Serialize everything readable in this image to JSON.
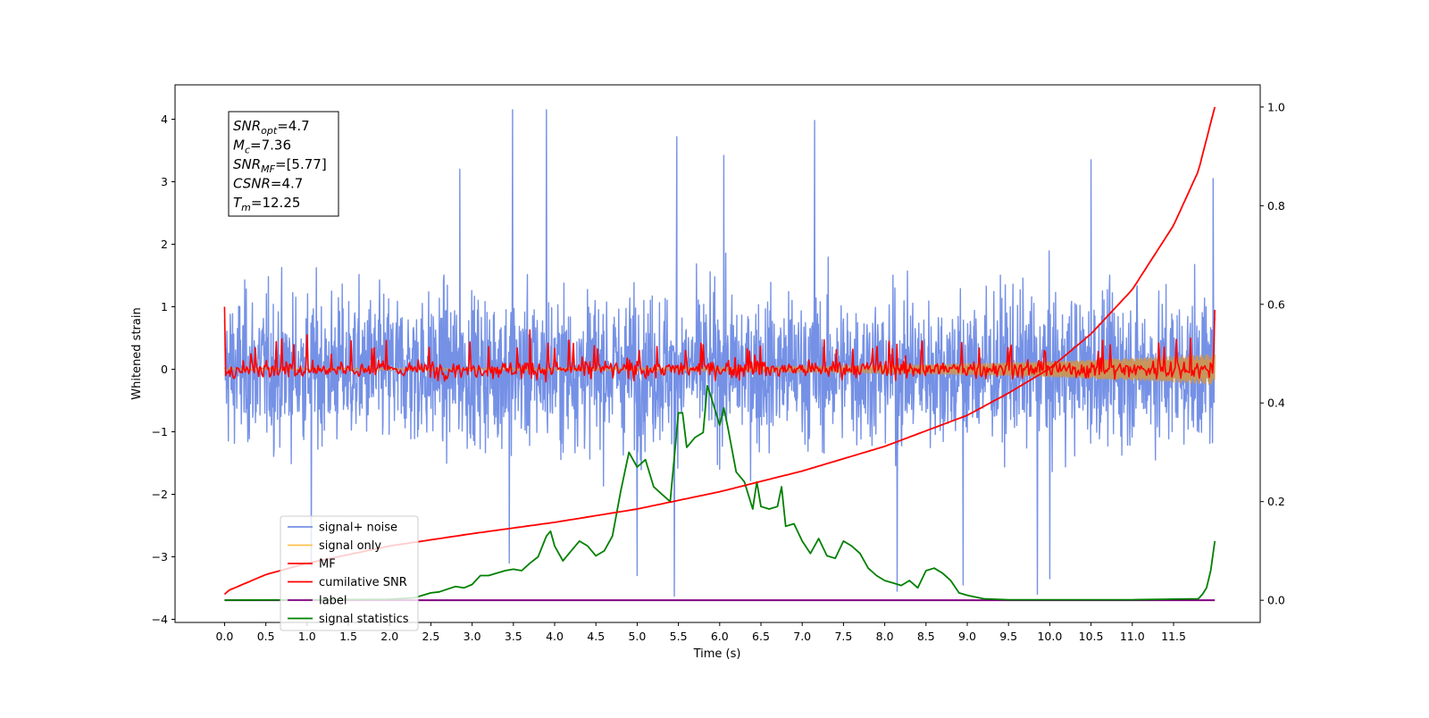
{
  "chart_data": {
    "type": "line",
    "xlabel": "Time (s)",
    "ylabel": "Whitened strain",
    "xlim": [
      -0.6,
      12.55
    ],
    "ylim": [
      -4.05,
      4.55
    ],
    "y2lim": [
      -0.045,
      1.045
    ],
    "xticks": [
      0.0,
      0.5,
      1.0,
      1.5,
      2.0,
      2.5,
      3.0,
      3.5,
      4.0,
      4.5,
      5.0,
      5.5,
      6.0,
      6.5,
      7.0,
      7.5,
      8.0,
      8.5,
      9.0,
      9.5,
      10.0,
      10.5,
      11.0,
      11.5
    ],
    "xtick_labels": [
      "0.0",
      "0.5",
      "1.0",
      "1.5",
      "2.0",
      "2.5",
      "3.0",
      "3.5",
      "4.0",
      "4.5",
      "5.0",
      "5.5",
      "6.0",
      "6.5",
      "7.0",
      "7.5",
      "8.0",
      "8.5",
      "9.0",
      "9.5",
      "10.0",
      "10.5",
      "11.0",
      "11.5"
    ],
    "yticks": [
      -4,
      -3,
      -2,
      -1,
      0,
      1,
      2,
      3,
      4
    ],
    "ytick_labels": [
      "−4",
      "−3",
      "−2",
      "−1",
      "0",
      "1",
      "2",
      "3",
      "4"
    ],
    "y2ticks": [
      0.0,
      0.2,
      0.4,
      0.6,
      0.8,
      1.0
    ],
    "y2tick_labels": [
      "0.0",
      "0.2",
      "0.4",
      "0.6",
      "0.8",
      "1.0"
    ],
    "grid": false,
    "legend_position": "lower-left",
    "annotation_box": {
      "lines": [
        {
          "base": "SNR",
          "sub": "opt",
          "rest": "=4.7"
        },
        {
          "base": "M",
          "sub": "c",
          "rest": "=7.36"
        },
        {
          "base": "SNR",
          "sub": "MF",
          "rest": "=[5.77]"
        },
        {
          "base": "CSNR",
          "sub": "",
          "rest": "=4.7"
        },
        {
          "base": "T",
          "sub": "m",
          "rest": "=12.25"
        }
      ]
    },
    "series": [
      {
        "name": "signal+ noise",
        "color": "#7591e6",
        "axis": "left",
        "kind": "noise",
        "x_range": [
          0.0,
          12.0
        ],
        "envelope": [
          -2.5,
          2.5
        ],
        "peaks": [
          {
            "x": 3.49,
            "y": 4.15
          },
          {
            "x": 3.9,
            "y": 4.15
          },
          {
            "x": 7.15,
            "y": 3.98
          },
          {
            "x": 5.48,
            "y": 3.72
          },
          {
            "x": 10.5,
            "y": 3.35
          },
          {
            "x": 11.98,
            "y": 3.05
          },
          {
            "x": 2.85,
            "y": 3.2
          },
          {
            "x": 6.05,
            "y": 3.42
          }
        ],
        "troughs": [
          {
            "x": 5.45,
            "y": -3.63
          },
          {
            "x": 8.15,
            "y": -3.55
          },
          {
            "x": 8.95,
            "y": -3.45
          },
          {
            "x": 9.85,
            "y": -3.6
          },
          {
            "x": 10.0,
            "y": -3.35
          },
          {
            "x": 1.05,
            "y": -3.15
          },
          {
            "x": 3.45,
            "y": -3.1
          },
          {
            "x": 5.0,
            "y": -3.3
          }
        ]
      },
      {
        "name": "signal only",
        "color": "#ffc14d",
        "axis": "left",
        "kind": "chirp",
        "x_range": [
          0.0,
          12.0
        ],
        "amplitude_start": 0.02,
        "amplitude_end": 0.25
      },
      {
        "name": "MF",
        "color": "#ff0000",
        "axis": "left",
        "kind": "noise-small",
        "x_range": [
          0.0,
          12.0
        ],
        "envelope": [
          -0.25,
          0.5
        ],
        "start_value": 1.0,
        "end_value": 0.95,
        "peaks": [
          {
            "x": 3.7,
            "y": 0.63
          },
          {
            "x": 1.0,
            "y": 0.55
          }
        ]
      },
      {
        "name": "cumilative SNR",
        "color": "#ff0000",
        "axis": "right",
        "x": [
          0.0,
          0.05,
          0.5,
          1.0,
          2.0,
          3.0,
          4.0,
          5.0,
          6.0,
          7.0,
          8.0,
          9.0,
          9.5,
          10.0,
          10.5,
          11.0,
          11.5,
          11.8,
          12.0
        ],
        "y": [
          0.012,
          0.02,
          0.052,
          0.075,
          0.11,
          0.135,
          0.158,
          0.185,
          0.22,
          0.262,
          0.312,
          0.375,
          0.42,
          0.47,
          0.54,
          0.63,
          0.76,
          0.87,
          1.0
        ]
      },
      {
        "name": "label",
        "color": "#800080",
        "axis": "right",
        "x": [
          0.0,
          12.0
        ],
        "y": [
          0.0,
          0.0
        ]
      },
      {
        "name": "signal statistics",
        "color": "#008000",
        "axis": "right",
        "x": [
          0.0,
          1.0,
          2.0,
          2.3,
          2.5,
          2.6,
          2.8,
          2.9,
          3.0,
          3.1,
          3.2,
          3.3,
          3.4,
          3.5,
          3.6,
          3.7,
          3.8,
          3.9,
          3.95,
          4.0,
          4.1,
          4.2,
          4.3,
          4.4,
          4.5,
          4.6,
          4.7,
          4.8,
          4.9,
          5.0,
          5.1,
          5.2,
          5.3,
          5.4,
          5.5,
          5.55,
          5.6,
          5.7,
          5.8,
          5.85,
          5.9,
          6.0,
          6.05,
          6.1,
          6.2,
          6.3,
          6.4,
          6.45,
          6.5,
          6.6,
          6.7,
          6.75,
          6.8,
          6.9,
          7.0,
          7.1,
          7.2,
          7.3,
          7.4,
          7.5,
          7.6,
          7.7,
          7.8,
          7.9,
          8.0,
          8.1,
          8.2,
          8.3,
          8.4,
          8.5,
          8.6,
          8.7,
          8.8,
          8.9,
          9.0,
          9.2,
          9.5,
          10.0,
          11.0,
          11.8,
          11.85,
          11.9,
          11.95,
          12.0
        ],
        "y": [
          0.0,
          0.001,
          0.002,
          0.005,
          0.015,
          0.017,
          0.028,
          0.025,
          0.032,
          0.05,
          0.05,
          0.055,
          0.06,
          0.063,
          0.06,
          0.075,
          0.088,
          0.13,
          0.14,
          0.11,
          0.08,
          0.1,
          0.12,
          0.11,
          0.09,
          0.1,
          0.13,
          0.22,
          0.3,
          0.27,
          0.285,
          0.23,
          0.215,
          0.2,
          0.38,
          0.38,
          0.31,
          0.33,
          0.34,
          0.435,
          0.41,
          0.355,
          0.39,
          0.35,
          0.26,
          0.24,
          0.185,
          0.24,
          0.19,
          0.185,
          0.19,
          0.23,
          0.15,
          0.155,
          0.12,
          0.095,
          0.125,
          0.09,
          0.085,
          0.12,
          0.11,
          0.095,
          0.065,
          0.05,
          0.04,
          0.035,
          0.03,
          0.04,
          0.025,
          0.06,
          0.065,
          0.055,
          0.04,
          0.015,
          0.01,
          0.003,
          0.001,
          0.001,
          0.001,
          0.003,
          0.012,
          0.025,
          0.06,
          0.12
        ]
      }
    ]
  }
}
